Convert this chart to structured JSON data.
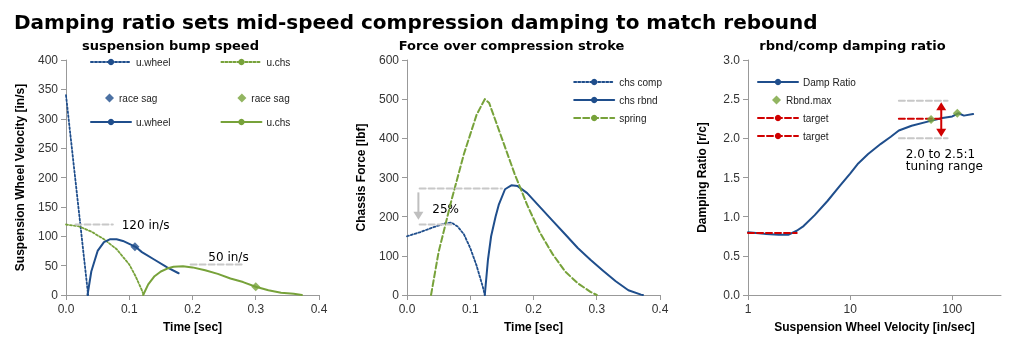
{
  "chart_data": [
    {
      "type": "other",
      "title": "Damping ratio sets mid-speed compression damping to match rebound"
    },
    {
      "type": "line",
      "title": "suspension bump speed",
      "xlabel": "Time [sec]",
      "ylabel": "Suspension Wheel Velocity [in/s]",
      "xlim": [
        0,
        0.4
      ],
      "xticks": [
        {
          "value": 0,
          "label": "0.0"
        },
        0.1,
        0.2,
        0.3,
        0.4
      ],
      "ylim": [
        0,
        400
      ],
      "yticks": [
        0,
        50,
        100,
        150,
        200,
        250,
        300,
        350,
        400
      ],
      "grid": false,
      "legend": "top",
      "series": [
        {
          "name": "u.wheel",
          "color": "#1f4e8c",
          "line_style": "dotted",
          "marker": "none",
          "x": [
            0,
            0.035
          ],
          "values": [
            340,
            0
          ]
        },
        {
          "name": "u.chs",
          "color": "#77a23a",
          "line_style": "dotted",
          "marker": "none",
          "x": [
            0,
            0.02,
            0.04,
            0.06,
            0.08,
            0.1,
            0.11,
            0.12,
            0.123
          ],
          "values": [
            120,
            117,
            108,
            95,
            78,
            52,
            32,
            8,
            0
          ]
        },
        {
          "name": "u.wheel",
          "color": "#1f4e8c",
          "line_style": "solid",
          "marker": "none",
          "x": [
            0.034,
            0.04,
            0.05,
            0.06,
            0.07,
            0.08,
            0.09,
            0.1,
            0.11,
            0.12,
            0.14,
            0.16,
            0.178
          ],
          "values": [
            0,
            40,
            75,
            90,
            95,
            95,
            92,
            87,
            82,
            73,
            60,
            47,
            37
          ]
        },
        {
          "name": "u.chs",
          "color": "#77a23a",
          "line_style": "solid",
          "marker": "none",
          "x": [
            0.122,
            0.13,
            0.14,
            0.15,
            0.16,
            0.17,
            0.185,
            0.2,
            0.22,
            0.24,
            0.26,
            0.28,
            0.3,
            0.32,
            0.34,
            0.36,
            0.373
          ],
          "values": [
            0,
            18,
            32,
            40,
            45,
            48,
            49,
            47,
            42,
            36,
            28,
            22,
            14,
            8,
            4,
            2,
            0
          ]
        },
        {
          "name": "race sag",
          "type": "scatter",
          "color": "#1f4e8c",
          "marker": "diamond",
          "x": [
            0.109
          ],
          "values": [
            82
          ]
        },
        {
          "name": "race sag",
          "type": "scatter",
          "color": "#77a23a",
          "marker": "diamond",
          "x": [
            0.3
          ],
          "values": [
            14
          ]
        },
        {
          "color": "#c8c8c8",
          "line_style": "dashed",
          "marker": "none",
          "x": [
            0.015,
            0.074
          ],
          "values": [
            120,
            120
          ]
        },
        {
          "color": "#c8c8c8",
          "line_style": "dashed",
          "marker": "none",
          "x": [
            0.197,
            0.282
          ],
          "values": [
            52,
            52
          ]
        }
      ],
      "annotations": [
        "120 in/s",
        "50 in/s"
      ]
    },
    {
      "type": "line",
      "title": "Force over compression stroke",
      "xlabel": "Time [sec]",
      "ylabel": "Chassis Force [lbf]",
      "xlim": [
        0,
        0.4
      ],
      "xticks": [
        {
          "value": 0,
          "label": "0.0"
        },
        0.1,
        0.2,
        0.3,
        0.4
      ],
      "ylim": [
        0,
        600
      ],
      "yticks": [
        0,
        100,
        200,
        300,
        400,
        500,
        600
      ],
      "grid": false,
      "legend": "top right",
      "series": [
        {
          "name": "chs comp",
          "color": "#1f4e8c",
          "line_style": "dotted",
          "marker": "none",
          "x": [
            0,
            0.02,
            0.04,
            0.06,
            0.07,
            0.08,
            0.09,
            0.1,
            0.11,
            0.12,
            0.123
          ],
          "values": [
            150,
            160,
            172,
            183,
            185,
            175,
            155,
            120,
            75,
            20,
            0
          ]
        },
        {
          "name": "chs rbnd",
          "color": "#1f4e8c",
          "line_style": "solid",
          "marker": "none",
          "x": [
            0.123,
            0.128,
            0.133,
            0.14,
            0.145,
            0.155,
            0.165,
            0.175,
            0.19,
            0.21,
            0.23,
            0.25,
            0.27,
            0.29,
            0.31,
            0.33,
            0.35,
            0.37,
            0.373
          ],
          "values": [
            0,
            90,
            150,
            200,
            230,
            270,
            280,
            278,
            260,
            225,
            190,
            155,
            120,
            90,
            62,
            35,
            12,
            1,
            0
          ]
        },
        {
          "name": "spring",
          "color": "#77a23a",
          "line_style": "dashed",
          "marker": "none",
          "x": [
            0.038,
            0.05,
            0.07,
            0.09,
            0.1,
            0.11,
            0.123,
            0.13,
            0.15,
            0.17,
            0.19,
            0.21,
            0.23,
            0.25,
            0.27,
            0.29,
            0.3
          ],
          "values": [
            0,
            110,
            240,
            360,
            410,
            460,
            500,
            490,
            400,
            310,
            230,
            160,
            105,
            60,
            30,
            8,
            0
          ]
        },
        {
          "color": "#c8c8c8",
          "line_style": "dashed",
          "marker": "none",
          "x": [
            0.02,
            0.15
          ],
          "values": [
            272,
            272
          ]
        },
        {
          "color": "#c8c8c8",
          "line_style": "dashed",
          "marker": "none",
          "x": [
            0.02,
            0.07
          ],
          "values": [
            180,
            180
          ]
        }
      ],
      "annotations": [
        "25%"
      ]
    },
    {
      "type": "line",
      "title": "rbnd/comp damping ratio",
      "xlabel": "Suspension Wheel Velocity [in/sec]",
      "ylabel": "Damping Ratio [r/c]",
      "log": "x",
      "xlim": [
        1,
        300
      ],
      "xticks": [
        1,
        10,
        100
      ],
      "ylim": [
        0,
        3
      ],
      "yticks": [
        {
          "value": 0,
          "label": "0.0"
        },
        0.5,
        {
          "value": 1,
          "label": "1.0"
        },
        1.5,
        {
          "value": 2,
          "label": "2.0"
        },
        2.5,
        {
          "value": 3,
          "label": "3.0"
        }
      ],
      "grid": false,
      "legend": "top left",
      "series": [
        {
          "name": "Damp Ratio",
          "color": "#1f4e8c",
          "line_style": "solid",
          "marker": "none",
          "x": [
            1,
            1.5,
            2,
            2.5,
            3,
            3.5,
            4.5,
            6,
            8,
            10,
            12,
            15,
            20,
            25,
            30,
            40,
            60,
            80,
            100,
            115,
            130,
            160
          ],
          "values": [
            0.8,
            0.78,
            0.77,
            0.77,
            0.82,
            0.88,
            1.02,
            1.2,
            1.4,
            1.55,
            1.68,
            1.8,
            1.93,
            2.02,
            2.1,
            2.16,
            2.22,
            2.26,
            2.28,
            2.32,
            2.29,
            2.31
          ]
        },
        {
          "name": "Rbnd.max",
          "type": "scatter",
          "color": "#77a23a",
          "marker": "diamond",
          "x": [
            62,
            112
          ],
          "values": [
            2.24,
            2.32
          ]
        },
        {
          "name": "target",
          "color": "#d00000",
          "line_style": "dashed",
          "marker": "none",
          "x": [
            1,
            3
          ],
          "values": [
            0.79,
            0.79
          ]
        },
        {
          "name": "target",
          "color": "#d00000",
          "line_style": "dashed",
          "marker": "none",
          "x": [
            30,
            80
          ],
          "values": [
            2.25,
            2.25
          ]
        },
        {
          "color": "#c8c8c8",
          "line_style": "dashed",
          "marker": "none",
          "x": [
            30,
            90
          ],
          "values": [
            2.48,
            2.48
          ]
        },
        {
          "color": "#c8c8c8",
          "line_style": "dashed",
          "marker": "none",
          "x": [
            30,
            90
          ],
          "values": [
            2.0,
            2.0
          ]
        }
      ],
      "annotations": [
        "2.0 to 2.5:1\ntuning range"
      ]
    }
  ]
}
